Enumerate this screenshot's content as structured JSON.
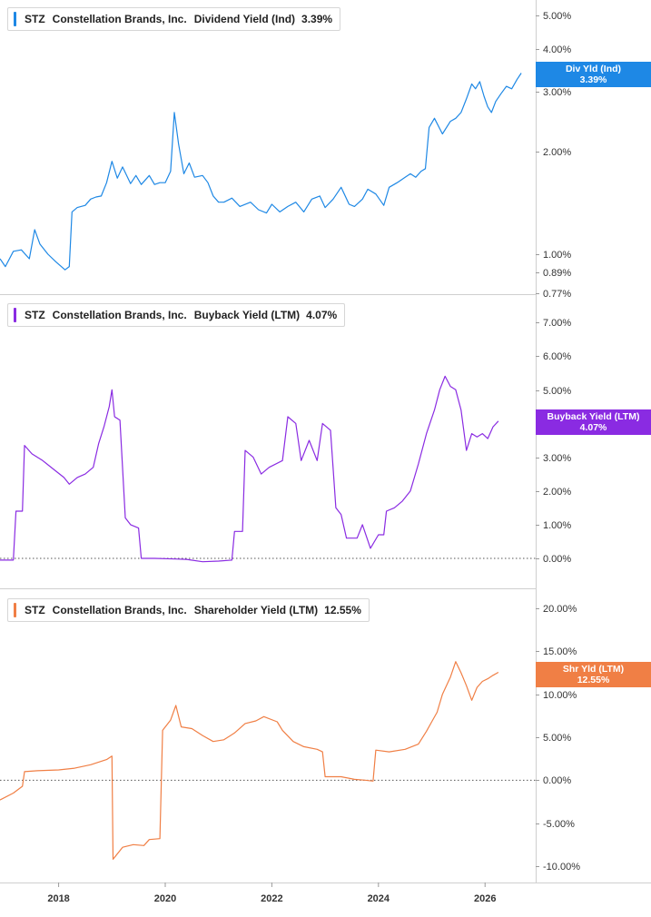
{
  "colors": {
    "dividend": "#1e88e5",
    "buyback": "#8a2be2",
    "shareholder": "#f07f45",
    "grid": "#cfcfcf",
    "axis_text": "#333333"
  },
  "x_axis": {
    "ticks": [
      "2018",
      "2020",
      "2022",
      "2024",
      "2026"
    ]
  },
  "panels": [
    {
      "key": "dividend",
      "legend": {
        "ticker": "STZ",
        "company": "Constellation Brands, Inc.",
        "metric": "Dividend Yield (Ind)",
        "value": "3.39%"
      },
      "badge": {
        "label": "Div Yld (Ind)",
        "value": "3.39%"
      },
      "tick_labels": [
        "5.00%",
        "4.00%",
        "3.00%",
        "2.00%",
        "1.00%",
        "0.89%",
        "0.77%"
      ]
    },
    {
      "key": "buyback",
      "legend": {
        "ticker": "STZ",
        "company": "Constellation Brands, Inc.",
        "metric": "Buyback Yield (LTM)",
        "value": "4.07%"
      },
      "badge": {
        "label": "Buyback Yield (LTM)",
        "value": "4.07%"
      },
      "tick_labels": [
        "7.00%",
        "6.00%",
        "5.00%",
        "3.00%",
        "2.00%",
        "1.00%",
        "0.00%"
      ]
    },
    {
      "key": "shareholder",
      "legend": {
        "ticker": "STZ",
        "company": "Constellation Brands, Inc.",
        "metric": "Shareholder Yield (LTM)",
        "value": "12.55%"
      },
      "badge": {
        "label": "Shr Yld (LTM)",
        "value": "12.55%"
      },
      "tick_labels": [
        "20.00%",
        "15.00%",
        "10.00%",
        "5.00%",
        "0.00%",
        "-5.00%",
        "-10.00%"
      ]
    }
  ],
  "chart_data": [
    {
      "type": "line",
      "title": "STZ Constellation Brands, Inc. Dividend Yield (Ind) 3.39%",
      "scale": "log",
      "ylim": [
        0.77,
        5.4
      ],
      "series": [
        {
          "name": "Dividend Yield (Ind)",
          "points": [
            [
              2016.9,
              0.97
            ],
            [
              2017.0,
              0.92
            ],
            [
              2017.15,
              1.02
            ],
            [
              2017.3,
              1.03
            ],
            [
              2017.45,
              0.97
            ],
            [
              2017.55,
              1.18
            ],
            [
              2017.65,
              1.07
            ],
            [
              2017.8,
              1.0
            ],
            [
              2017.95,
              0.95
            ],
            [
              2018.05,
              0.92
            ],
            [
              2018.12,
              0.9
            ],
            [
              2018.2,
              0.92
            ],
            [
              2018.25,
              1.33
            ],
            [
              2018.35,
              1.37
            ],
            [
              2018.5,
              1.39
            ],
            [
              2018.6,
              1.45
            ],
            [
              2018.7,
              1.47
            ],
            [
              2018.8,
              1.48
            ],
            [
              2018.9,
              1.62
            ],
            [
              2019.0,
              1.87
            ],
            [
              2019.1,
              1.67
            ],
            [
              2019.2,
              1.8
            ],
            [
              2019.35,
              1.61
            ],
            [
              2019.45,
              1.7
            ],
            [
              2019.55,
              1.6
            ],
            [
              2019.7,
              1.7
            ],
            [
              2019.8,
              1.6
            ],
            [
              2019.9,
              1.62
            ],
            [
              2020.0,
              1.62
            ],
            [
              2020.1,
              1.75
            ],
            [
              2020.17,
              2.6
            ],
            [
              2020.25,
              2.1
            ],
            [
              2020.35,
              1.72
            ],
            [
              2020.45,
              1.85
            ],
            [
              2020.55,
              1.68
            ],
            [
              2020.7,
              1.7
            ],
            [
              2020.8,
              1.62
            ],
            [
              2020.9,
              1.48
            ],
            [
              2021.0,
              1.42
            ],
            [
              2021.1,
              1.42
            ],
            [
              2021.25,
              1.46
            ],
            [
              2021.4,
              1.38
            ],
            [
              2021.6,
              1.42
            ],
            [
              2021.75,
              1.35
            ],
            [
              2021.9,
              1.32
            ],
            [
              2022.0,
              1.4
            ],
            [
              2022.15,
              1.33
            ],
            [
              2022.3,
              1.38
            ],
            [
              2022.45,
              1.42
            ],
            [
              2022.6,
              1.33
            ],
            [
              2022.75,
              1.45
            ],
            [
              2022.9,
              1.48
            ],
            [
              2023.0,
              1.37
            ],
            [
              2023.15,
              1.45
            ],
            [
              2023.3,
              1.57
            ],
            [
              2023.45,
              1.4
            ],
            [
              2023.55,
              1.38
            ],
            [
              2023.7,
              1.45
            ],
            [
              2023.8,
              1.55
            ],
            [
              2023.95,
              1.5
            ],
            [
              2024.1,
              1.39
            ],
            [
              2024.2,
              1.57
            ],
            [
              2024.35,
              1.62
            ],
            [
              2024.5,
              1.68
            ],
            [
              2024.6,
              1.72
            ],
            [
              2024.7,
              1.68
            ],
            [
              2024.8,
              1.75
            ],
            [
              2024.88,
              1.78
            ],
            [
              2024.95,
              2.35
            ],
            [
              2025.05,
              2.5
            ],
            [
              2025.2,
              2.25
            ],
            [
              2025.35,
              2.45
            ],
            [
              2025.45,
              2.5
            ],
            [
              2025.55,
              2.6
            ],
            [
              2025.65,
              2.85
            ],
            [
              2025.75,
              3.15
            ],
            [
              2025.82,
              3.05
            ],
            [
              2025.9,
              3.2
            ],
            [
              2025.98,
              2.9
            ],
            [
              2026.05,
              2.7
            ],
            [
              2026.12,
              2.6
            ],
            [
              2026.2,
              2.8
            ],
            [
              2026.3,
              2.95
            ],
            [
              2026.4,
              3.1
            ],
            [
              2026.5,
              3.05
            ],
            [
              2026.6,
              3.25
            ],
            [
              2026.68,
              3.39
            ]
          ]
        }
      ]
    },
    {
      "type": "line",
      "title": "STZ Constellation Brands, Inc. Buyback Yield (LTM) 4.07%",
      "ylim": [
        -0.3,
        7.3
      ],
      "series": [
        {
          "name": "Buyback Yield (LTM)",
          "points": [
            [
              2016.9,
              -0.05
            ],
            [
              2017.15,
              -0.05
            ],
            [
              2017.2,
              1.4
            ],
            [
              2017.32,
              1.4
            ],
            [
              2017.36,
              3.35
            ],
            [
              2017.5,
              3.1
            ],
            [
              2017.7,
              2.9
            ],
            [
              2017.9,
              2.65
            ],
            [
              2018.1,
              2.4
            ],
            [
              2018.2,
              2.2
            ],
            [
              2018.35,
              2.4
            ],
            [
              2018.5,
              2.5
            ],
            [
              2018.65,
              2.7
            ],
            [
              2018.75,
              3.4
            ],
            [
              2018.85,
              3.9
            ],
            [
              2018.95,
              4.5
            ],
            [
              2019.0,
              5.0
            ],
            [
              2019.05,
              4.2
            ],
            [
              2019.15,
              4.1
            ],
            [
              2019.25,
              1.2
            ],
            [
              2019.35,
              1.0
            ],
            [
              2019.5,
              0.9
            ],
            [
              2019.55,
              0.0
            ],
            [
              2019.8,
              0.0
            ],
            [
              2020.2,
              -0.02
            ],
            [
              2020.4,
              -0.03
            ],
            [
              2020.7,
              -0.1
            ],
            [
              2021.0,
              -0.08
            ],
            [
              2021.25,
              -0.05
            ],
            [
              2021.3,
              0.8
            ],
            [
              2021.45,
              0.8
            ],
            [
              2021.5,
              3.2
            ],
            [
              2021.65,
              3.0
            ],
            [
              2021.8,
              2.5
            ],
            [
              2021.95,
              2.7
            ],
            [
              2022.2,
              2.9
            ],
            [
              2022.3,
              4.2
            ],
            [
              2022.45,
              4.0
            ],
            [
              2022.55,
              2.9
            ],
            [
              2022.7,
              3.5
            ],
            [
              2022.85,
              2.9
            ],
            [
              2022.95,
              4.0
            ],
            [
              2023.1,
              3.8
            ],
            [
              2023.2,
              1.5
            ],
            [
              2023.3,
              1.3
            ],
            [
              2023.4,
              0.6
            ],
            [
              2023.6,
              0.6
            ],
            [
              2023.7,
              1.0
            ],
            [
              2023.85,
              0.3
            ],
            [
              2024.0,
              0.7
            ],
            [
              2024.1,
              0.7
            ],
            [
              2024.15,
              1.4
            ],
            [
              2024.3,
              1.5
            ],
            [
              2024.45,
              1.7
            ],
            [
              2024.6,
              2.0
            ],
            [
              2024.75,
              2.8
            ],
            [
              2024.9,
              3.7
            ],
            [
              2025.05,
              4.4
            ],
            [
              2025.15,
              5.0
            ],
            [
              2025.25,
              5.4
            ],
            [
              2025.35,
              5.1
            ],
            [
              2025.45,
              5.0
            ],
            [
              2025.55,
              4.4
            ],
            [
              2025.65,
              3.2
            ],
            [
              2025.75,
              3.7
            ],
            [
              2025.85,
              3.6
            ],
            [
              2025.95,
              3.7
            ],
            [
              2026.05,
              3.55
            ],
            [
              2026.15,
              3.9
            ],
            [
              2026.25,
              4.07
            ]
          ]
        }
      ]
    },
    {
      "type": "line",
      "title": "STZ Constellation Brands, Inc. Shareholder Yield (LTM) 12.55%",
      "ylim": [
        -10.5,
        20.5
      ],
      "series": [
        {
          "name": "Shareholder Yield (LTM)",
          "points": [
            [
              2016.9,
              -2.3
            ],
            [
              2017.15,
              -1.5
            ],
            [
              2017.32,
              -0.7
            ],
            [
              2017.36,
              1.0
            ],
            [
              2017.6,
              1.1
            ],
            [
              2018.0,
              1.2
            ],
            [
              2018.3,
              1.4
            ],
            [
              2018.6,
              1.8
            ],
            [
              2018.9,
              2.4
            ],
            [
              2019.0,
              2.8
            ],
            [
              2019.02,
              -9.2
            ],
            [
              2019.2,
              -7.8
            ],
            [
              2019.4,
              -7.5
            ],
            [
              2019.6,
              -7.6
            ],
            [
              2019.7,
              -6.9
            ],
            [
              2019.9,
              -6.8
            ],
            [
              2019.95,
              5.8
            ],
            [
              2020.1,
              7.0
            ],
            [
              2020.2,
              8.7
            ],
            [
              2020.3,
              6.2
            ],
            [
              2020.5,
              6.0
            ],
            [
              2020.7,
              5.2
            ],
            [
              2020.9,
              4.5
            ],
            [
              2021.1,
              4.7
            ],
            [
              2021.3,
              5.5
            ],
            [
              2021.5,
              6.6
            ],
            [
              2021.7,
              6.9
            ],
            [
              2021.85,
              7.4
            ],
            [
              2022.1,
              6.8
            ],
            [
              2022.2,
              5.8
            ],
            [
              2022.4,
              4.5
            ],
            [
              2022.6,
              3.9
            ],
            [
              2022.85,
              3.6
            ],
            [
              2022.95,
              3.3
            ],
            [
              2023.0,
              0.4
            ],
            [
              2023.3,
              0.4
            ],
            [
              2023.55,
              0.1
            ],
            [
              2023.75,
              0.0
            ],
            [
              2023.9,
              -0.1
            ],
            [
              2023.95,
              3.5
            ],
            [
              2024.2,
              3.3
            ],
            [
              2024.5,
              3.6
            ],
            [
              2024.75,
              4.2
            ],
            [
              2024.9,
              5.7
            ],
            [
              2025.0,
              6.8
            ],
            [
              2025.1,
              7.9
            ],
            [
              2025.2,
              10.0
            ],
            [
              2025.35,
              12.0
            ],
            [
              2025.45,
              13.8
            ],
            [
              2025.55,
              12.5
            ],
            [
              2025.65,
              11.0
            ],
            [
              2025.75,
              9.3
            ],
            [
              2025.85,
              10.8
            ],
            [
              2025.95,
              11.5
            ],
            [
              2026.05,
              11.8
            ],
            [
              2026.15,
              12.2
            ],
            [
              2026.25,
              12.55
            ]
          ]
        }
      ]
    }
  ]
}
